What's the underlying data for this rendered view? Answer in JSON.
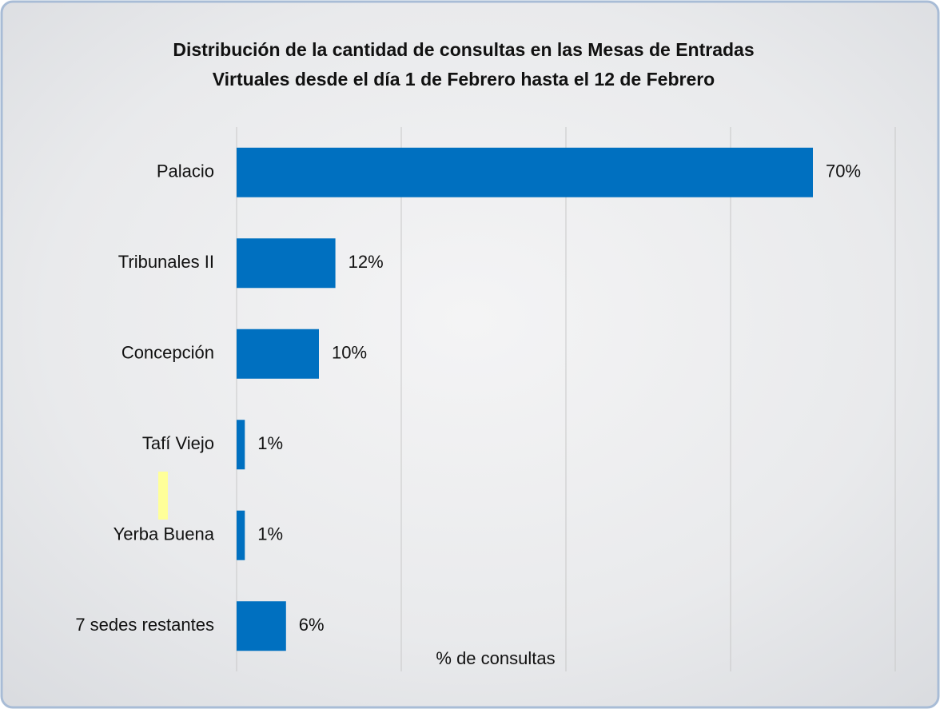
{
  "chart_data": {
    "type": "bar",
    "orientation": "horizontal",
    "title": "Distribución de la cantidad de consultas en las Mesas de Entradas Virtuales desde el día 1 de Febrero hasta el 12 de Febrero",
    "x_label": "% de consultas",
    "categories": [
      "Palacio",
      "Tribunales II",
      "Concepción",
      "Tafí Viejo",
      "Yerba Buena",
      "7 sedes restantes"
    ],
    "values": [
      70,
      12,
      10,
      1,
      1,
      6
    ],
    "value_labels": [
      "70%",
      "12%",
      "10%",
      "1%",
      "1%",
      "6%"
    ],
    "color": "#0070c0",
    "xlim": [
      0,
      80
    ],
    "xticks": [
      0,
      20,
      40,
      60,
      80
    ],
    "grid": true
  }
}
